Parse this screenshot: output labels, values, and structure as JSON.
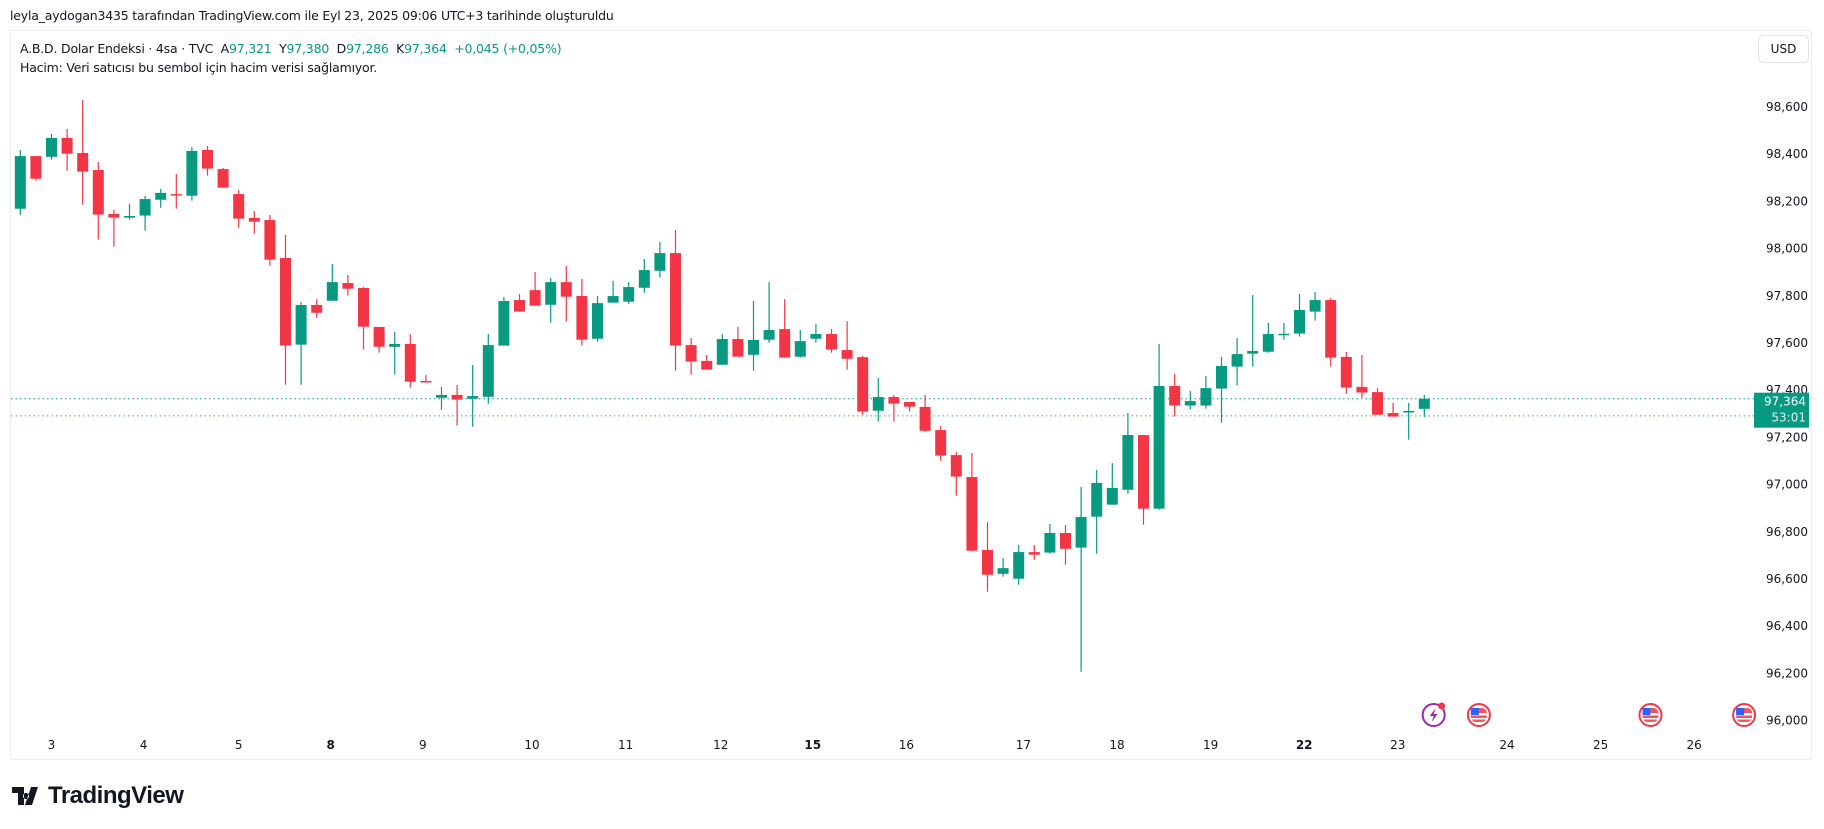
{
  "credit": "leyla_aydogan3435 tarafından TradingView.com ile Eyl 23, 2025 09:06 UTC+3 tarihinde oluşturuldu",
  "legend": {
    "symbol": "A.B.D. Dolar Endeksi · 4sa · TVC",
    "open_label": "A",
    "open": "97,321",
    "high_label": "Y",
    "high": "97,380",
    "low_label": "D",
    "low": "97,286",
    "close_label": "K",
    "close": "97,364",
    "change": "+0,045 (+0,05%)",
    "volume_note": "Hacim: Veri satıcısı bu sembol için hacim verisi sağlamıyor."
  },
  "currency_button": "USD",
  "price_tag": {
    "price": "97,364",
    "countdown": "53:01"
  },
  "logo_text": "TradingView",
  "colors": {
    "up": "#089981",
    "down": "#f23645",
    "price_line": "#089981",
    "prev_line": "#4caf50",
    "event": "#9c27b0",
    "flag": "#f23645"
  },
  "chart_data": {
    "type": "candlestick",
    "title": "A.B.D. Dolar Endeksi · 4sa · TVC",
    "ylim": [
      96.0,
      98.6
    ],
    "yticks": [
      96.0,
      96.2,
      96.4,
      96.6,
      96.8,
      97.0,
      97.2,
      97.4,
      97.6,
      97.8,
      98.0,
      98.2,
      98.4,
      98.6
    ],
    "ytick_labels": [
      "96,000",
      "96,200",
      "96,400",
      "96,600",
      "96,800",
      "97,000",
      "97,200",
      "97,400",
      "97,600",
      "97,800",
      "98,000",
      "98,200",
      "98,400",
      "98,600"
    ],
    "xticks": [
      {
        "label": "3",
        "bar": 2,
        "bold": false
      },
      {
        "label": "4",
        "bar": 7.9,
        "bold": false
      },
      {
        "label": "5",
        "bar": 14,
        "bold": false
      },
      {
        "label": "8",
        "bar": 19.9,
        "bold": true
      },
      {
        "label": "9",
        "bar": 25.8,
        "bold": false
      },
      {
        "label": "10",
        "bar": 32.8,
        "bold": false
      },
      {
        "label": "11",
        "bar": 38.8,
        "bold": false
      },
      {
        "label": "12",
        "bar": 44.9,
        "bold": false
      },
      {
        "label": "15",
        "bar": 50.8,
        "bold": true
      },
      {
        "label": "16",
        "bar": 56.8,
        "bold": false
      },
      {
        "label": "17",
        "bar": 64.3,
        "bold": false
      },
      {
        "label": "18",
        "bar": 70.3,
        "bold": false
      },
      {
        "label": "19",
        "bar": 76.3,
        "bold": false
      },
      {
        "label": "22",
        "bar": 82.3,
        "bold": true
      },
      {
        "label": "23",
        "bar": 88.3,
        "bold": false
      },
      {
        "label": "24",
        "bar": 95.3,
        "bold": false
      },
      {
        "label": "25",
        "bar": 101.3,
        "bold": false
      },
      {
        "label": "26",
        "bar": 107.3,
        "bold": false
      }
    ],
    "last_price": 97.364,
    "secondary_line": 97.291,
    "events": [
      {
        "type": "lightning",
        "bar": 90.6
      },
      {
        "type": "us-flag",
        "bar": 93.5
      },
      {
        "type": "us-flag",
        "bar": 104.5
      },
      {
        "type": "us-flag",
        "bar": 110.5
      }
    ],
    "ohlc": [
      [
        98.169,
        98.418,
        98.142,
        98.392
      ],
      [
        98.392,
        98.392,
        98.288,
        98.296
      ],
      [
        98.389,
        98.486,
        98.377,
        98.469
      ],
      [
        98.469,
        98.507,
        98.33,
        98.402
      ],
      [
        98.405,
        98.63,
        98.186,
        98.326
      ],
      [
        98.333,
        98.367,
        98.038,
        98.144
      ],
      [
        98.147,
        98.164,
        98.008,
        98.131
      ],
      [
        98.131,
        98.189,
        98.123,
        98.138
      ],
      [
        98.14,
        98.223,
        98.076,
        98.21
      ],
      [
        98.207,
        98.253,
        98.173,
        98.236
      ],
      [
        98.231,
        98.316,
        98.169,
        98.229
      ],
      [
        98.224,
        98.43,
        98.203,
        98.414
      ],
      [
        98.418,
        98.435,
        98.309,
        98.339
      ],
      [
        98.337,
        98.341,
        98.258,
        98.258
      ],
      [
        98.231,
        98.248,
        98.089,
        98.127
      ],
      [
        98.13,
        98.159,
        98.063,
        98.114
      ],
      [
        98.121,
        98.142,
        97.928,
        97.953
      ],
      [
        97.96,
        98.058,
        97.423,
        97.589
      ],
      [
        97.593,
        97.774,
        97.423,
        97.761
      ],
      [
        97.761,
        97.786,
        97.707,
        97.728
      ],
      [
        97.779,
        97.935,
        97.779,
        97.858
      ],
      [
        97.854,
        97.888,
        97.801,
        97.83
      ],
      [
        97.833,
        97.837,
        97.572,
        97.669
      ],
      [
        97.668,
        97.668,
        97.559,
        97.584
      ],
      [
        97.584,
        97.647,
        97.466,
        97.596
      ],
      [
        97.596,
        97.638,
        97.411,
        97.436
      ],
      [
        97.439,
        97.464,
        97.432,
        97.435
      ],
      [
        97.368,
        97.414,
        97.317,
        97.38
      ],
      [
        97.38,
        97.422,
        97.25,
        97.36
      ],
      [
        97.364,
        97.507,
        97.245,
        97.375
      ],
      [
        97.372,
        97.638,
        97.343,
        97.591
      ],
      [
        97.589,
        97.795,
        97.589,
        97.778
      ],
      [
        97.782,
        97.807,
        97.733,
        97.733
      ],
      [
        97.824,
        97.901,
        97.758,
        97.758
      ],
      [
        97.762,
        97.875,
        97.686,
        97.858
      ],
      [
        97.858,
        97.926,
        97.69,
        97.796
      ],
      [
        97.799,
        97.871,
        97.589,
        97.614
      ],
      [
        97.618,
        97.799,
        97.605,
        97.769
      ],
      [
        97.771,
        97.863,
        97.771,
        97.799
      ],
      [
        97.775,
        97.858,
        97.766,
        97.837
      ],
      [
        97.834,
        97.956,
        97.813,
        97.909
      ],
      [
        97.906,
        98.028,
        97.877,
        97.981
      ],
      [
        97.981,
        98.079,
        97.483,
        97.589
      ],
      [
        97.591,
        97.621,
        97.466,
        97.521
      ],
      [
        97.524,
        97.549,
        97.487,
        97.487
      ],
      [
        97.508,
        97.638,
        97.508,
        97.617
      ],
      [
        97.617,
        97.668,
        97.542,
        97.542
      ],
      [
        97.55,
        97.778,
        97.483,
        97.613
      ],
      [
        97.614,
        97.858,
        97.601,
        97.655
      ],
      [
        97.659,
        97.786,
        97.538,
        97.538
      ],
      [
        97.542,
        97.655,
        97.538,
        97.608
      ],
      [
        97.618,
        97.68,
        97.601,
        97.638
      ],
      [
        97.638,
        97.659,
        97.559,
        97.572
      ],
      [
        97.57,
        97.693,
        97.487,
        97.533
      ],
      [
        97.54,
        97.545,
        97.296,
        97.309
      ],
      [
        97.313,
        97.452,
        97.267,
        97.371
      ],
      [
        97.371,
        97.379,
        97.267,
        97.343
      ],
      [
        97.35,
        97.35,
        97.309,
        97.33
      ],
      [
        97.329,
        97.38,
        97.224,
        97.228
      ],
      [
        97.231,
        97.248,
        97.101,
        97.123
      ],
      [
        97.125,
        97.138,
        96.953,
        97.034
      ],
      [
        97.032,
        97.134,
        96.716,
        96.72
      ],
      [
        96.723,
        96.841,
        96.546,
        96.618
      ],
      [
        96.622,
        96.689,
        96.61,
        96.646
      ],
      [
        96.601,
        96.744,
        96.576,
        96.714
      ],
      [
        96.714,
        96.744,
        96.682,
        96.703
      ],
      [
        96.712,
        96.833,
        96.707,
        96.795
      ],
      [
        96.795,
        96.829,
        96.661,
        96.728
      ],
      [
        96.733,
        96.99,
        96.207,
        96.863
      ],
      [
        96.864,
        97.062,
        96.707,
        97.007
      ],
      [
        96.915,
        97.091,
        96.915,
        96.986
      ],
      [
        96.978,
        97.303,
        96.961,
        97.21
      ],
      [
        97.21,
        97.21,
        96.83,
        96.898
      ],
      [
        96.898,
        97.596,
        96.894,
        97.418
      ],
      [
        97.418,
        97.469,
        97.288,
        97.335
      ],
      [
        97.335,
        97.397,
        97.318,
        97.354
      ],
      [
        97.335,
        97.46,
        97.322,
        97.409
      ],
      [
        97.407,
        97.541,
        97.262,
        97.503
      ],
      [
        97.5,
        97.621,
        97.419,
        97.553
      ],
      [
        97.555,
        97.803,
        97.5,
        97.566
      ],
      [
        97.563,
        97.685,
        97.559,
        97.638
      ],
      [
        97.637,
        97.685,
        97.614,
        97.639
      ],
      [
        97.64,
        97.808,
        97.627,
        97.74
      ],
      [
        97.733,
        97.816,
        97.695,
        97.782
      ],
      [
        97.782,
        97.791,
        97.5,
        97.538
      ],
      [
        97.541,
        97.562,
        97.385,
        97.411
      ],
      [
        97.414,
        97.549,
        97.368,
        97.39
      ],
      [
        97.392,
        97.409,
        97.296,
        97.296
      ],
      [
        97.303,
        97.346,
        97.288,
        97.288
      ],
      [
        97.309,
        97.346,
        97.19,
        97.312
      ],
      [
        97.321,
        97.38,
        97.286,
        97.364
      ]
    ]
  }
}
